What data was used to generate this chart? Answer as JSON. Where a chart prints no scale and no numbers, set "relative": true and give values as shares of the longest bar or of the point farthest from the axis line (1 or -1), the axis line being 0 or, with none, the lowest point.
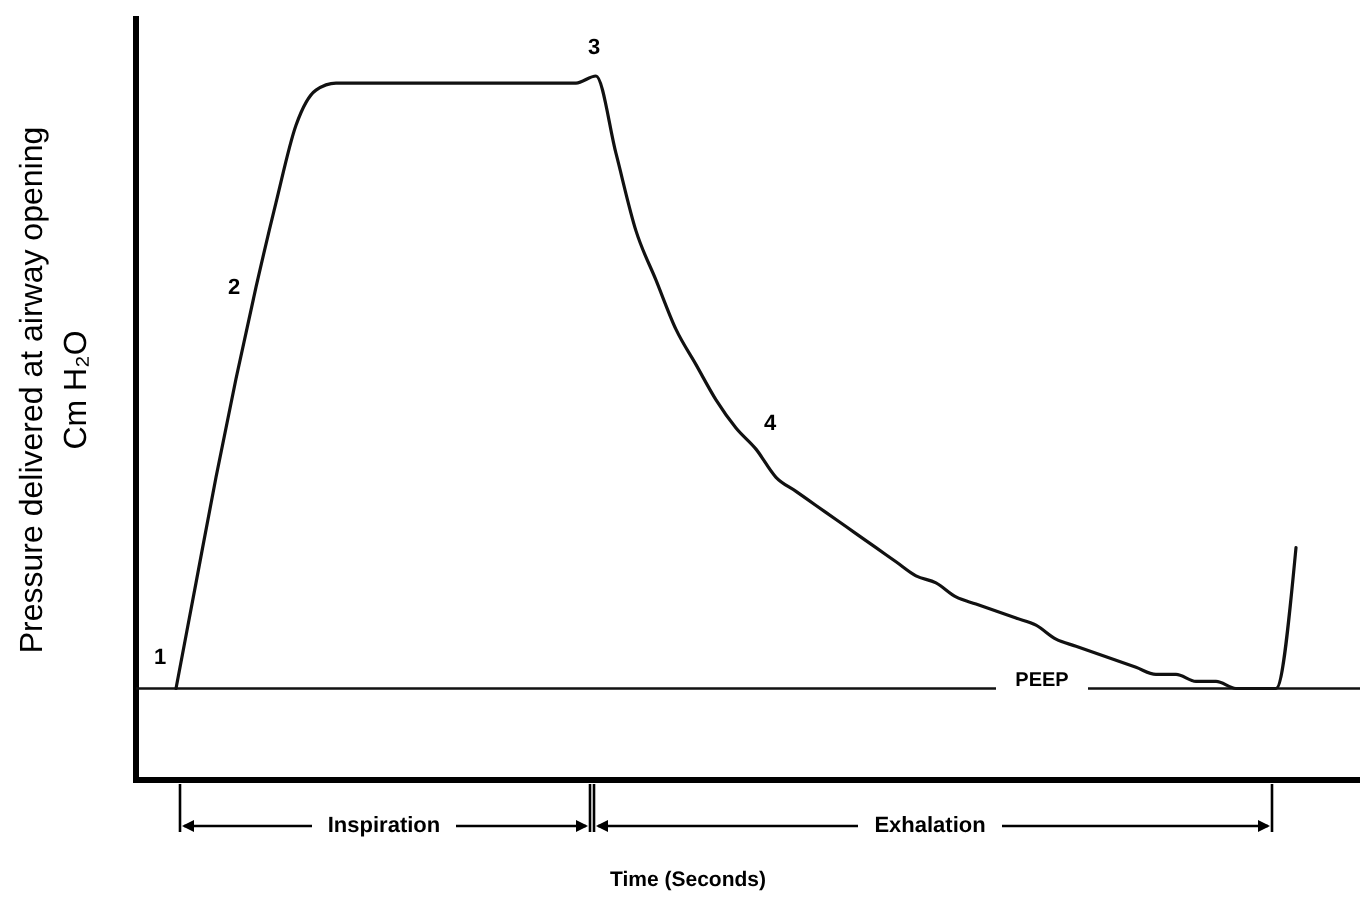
{
  "chart_data": {
    "type": "line",
    "relative": true,
    "xlabel": "Time (Seconds)",
    "ylabel": "Pressure delivered at airway opening\nCm H₂O",
    "categories": [
      null,
      null,
      null,
      null,
      null,
      null,
      null,
      null,
      null,
      null,
      null,
      null,
      null,
      null,
      null,
      null,
      null,
      null,
      null,
      null,
      null,
      null,
      null,
      null,
      null,
      null,
      null,
      null,
      null,
      null,
      null,
      null,
      null,
      null,
      null,
      null,
      null,
      null,
      null,
      null,
      null,
      null,
      null,
      null,
      null,
      null,
      null,
      null,
      null,
      null,
      null,
      null,
      null,
      null,
      null,
      null,
      null
    ],
    "series": [
      {
        "color": "#111111",
        "values": [
          0.13,
          0.28,
          0.43,
          0.57,
          0.7,
          0.82,
          0.93,
          0.98,
          0.99,
          0.99,
          0.99,
          0.99,
          0.99,
          0.99,
          0.99,
          0.99,
          0.99,
          0.99,
          0.99,
          0.99,
          0.99,
          1,
          0.89,
          0.78,
          0.71,
          0.64,
          0.59,
          0.54,
          0.5,
          0.47,
          0.43,
          0.41,
          0.39,
          0.37,
          0.35,
          0.33,
          0.31,
          0.29,
          0.28,
          0.26,
          0.25,
          0.24,
          0.23,
          0.22,
          0.2,
          0.19,
          0.18,
          0.17,
          0.16,
          0.15,
          0.15,
          0.14,
          0.14,
          0.13,
          0.13,
          0.13,
          0.33
        ]
      }
    ],
    "ref_lines": [
      {
        "axis": "y",
        "value": 0.13,
        "label": "PEEP",
        "color": "#111111"
      }
    ],
    "annotations": [
      "1",
      "2",
      "3",
      "4",
      "Inspiration",
      "Exhalation"
    ],
    "grid": false,
    "marker": "none",
    "line_style": "solid"
  }
}
